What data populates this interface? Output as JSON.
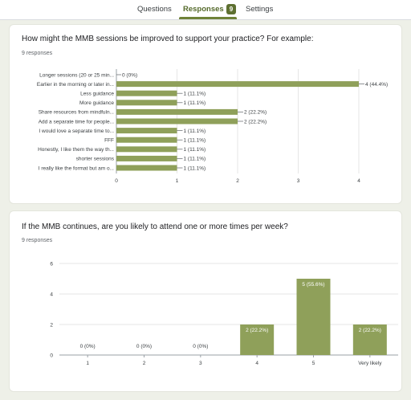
{
  "tabs": [
    {
      "label": "Questions"
    },
    {
      "label": "Responses",
      "badge": "9",
      "active": true
    },
    {
      "label": "Settings"
    }
  ],
  "colors": {
    "bar": "#8fa05a",
    "grid": "#e6e6e6",
    "accent": "#6f8238"
  },
  "question1": {
    "title": "How might the MMB sessions be improved to support your practice? For example:",
    "responses": "9 responses"
  },
  "question2": {
    "title": "If the MMB continues, are you likely to attend one or more times per week?",
    "responses": "9 responses"
  },
  "chart_data": [
    {
      "type": "bar",
      "orientation": "horizontal",
      "categories": [
        "Longer sessions (20 or 25 min...",
        "Earlier in the morning or later in...",
        "Less guidance",
        "More guidance",
        "Share resources from mindfuln...",
        "Add a separate time for people...",
        "I would love a separate time to...",
        "FFF",
        "Honestly, I like them the way th...",
        "shorter sessions",
        "I really like the format but am o..."
      ],
      "values": [
        0,
        4,
        1,
        1,
        2,
        2,
        1,
        1,
        1,
        1,
        1
      ],
      "data_labels": [
        "0 (0%)",
        "4 (44.4%)",
        "1 (11.1%)",
        "1 (11.1%)",
        "2 (22.2%)",
        "2 (22.2%)",
        "1 (11.1%)",
        "1 (11.1%)",
        "1 (11.1%)",
        "1 (11.1%)",
        "1 (11.1%)"
      ],
      "xlim": [
        0,
        4
      ],
      "xticks": [
        "0",
        "1",
        "2",
        "3",
        "4"
      ],
      "grid": true
    },
    {
      "type": "bar",
      "orientation": "vertical",
      "categories": [
        "1",
        "2",
        "3",
        "4",
        "5",
        "Very likely"
      ],
      "values": [
        0,
        0,
        0,
        2,
        5,
        2
      ],
      "data_labels": [
        "0 (0%)",
        "0 (0%)",
        "0 (0%)",
        "2 (22.2%)",
        "5 (55.6%)",
        "2 (22.2%)"
      ],
      "ylim": [
        0,
        6
      ],
      "yticks": [
        "0",
        "2",
        "4",
        "6"
      ],
      "grid": true
    }
  ]
}
